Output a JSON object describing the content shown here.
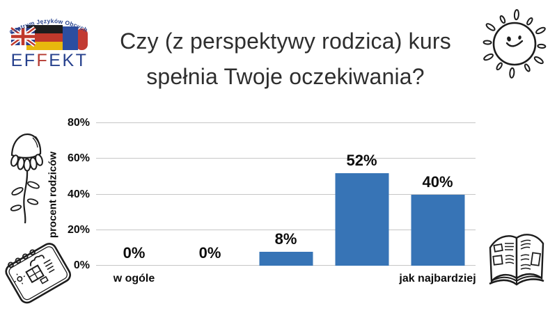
{
  "logo": {
    "arc_text": "Centrum Języków Obcych",
    "brand_prefix": "EF",
    "brand_mid": "F",
    "brand_suffix": "EKT",
    "brand_blue": "#27418d",
    "brand_red": "#b53a31"
  },
  "title": {
    "line1": "Czy (z perspektywy rodzica) kurs",
    "line2": "spełnia Twoje oczekiwania?"
  },
  "chart_data": {
    "type": "bar",
    "categories": [
      "w ogóle",
      "",
      "",
      "",
      "jak najbardziej"
    ],
    "values": [
      0,
      0,
      8,
      52,
      40
    ],
    "value_labels": [
      "0%",
      "0%",
      "8%",
      "52%",
      "40%"
    ],
    "ylabel": "procent rodziców",
    "yticks": [
      "0%",
      "20%",
      "40%",
      "60%",
      "80%"
    ],
    "ylim": [
      0,
      80
    ],
    "grid": true,
    "legend": "none",
    "bar_color": "#3774b6",
    "gridline_color": "#c6c6c6"
  },
  "icons": {
    "sun": "sun-doodle",
    "flower": "chamomile-flower-doodle",
    "notebook": "sketchbook-doodle",
    "book": "open-book-doodle"
  }
}
